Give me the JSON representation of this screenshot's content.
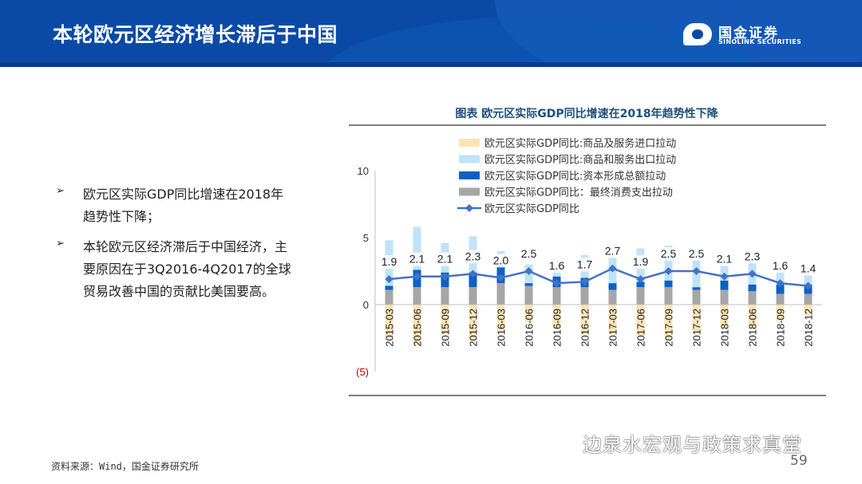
{
  "header": {
    "title": "本轮欧元区经济增长滞后于中国",
    "logo_cn": "国金证券",
    "logo_en": "SINOLINK SECURITIES"
  },
  "bullets": [
    "欧元区实际GDP同比增速在2018年趋势性下降；",
    "本轮欧元区经济滞后于中国经济，主要原因在于3Q2016-4Q2017的全球贸易改善中国的贡献比美国要高。"
  ],
  "footer": {
    "source": "资料来源：Wind，国金证券研究所",
    "page": "59",
    "watermark": "边泉水宏观与政策求真堂"
  },
  "colors": {
    "header_bg": "#0a4aa6",
    "imports": "#fbe3b4",
    "exports": "#bfe3f7",
    "capital": "#0b62c4",
    "consumption": "#a6a6a6",
    "gdp_line": "#4472c4",
    "title_text": "#1f4e79"
  },
  "chart_data": {
    "type": "bar",
    "title": "图表  欧元区实际GDP同比增速在2018年趋势性下降",
    "categories": [
      "2015-03",
      "2015-06",
      "2015-09",
      "2015-12",
      "2016-03",
      "2016-06",
      "2016-09",
      "2016-12",
      "2017-03",
      "2017-06",
      "2017-09",
      "2017-12",
      "2018-03",
      "2018-06",
      "2018-09",
      "2018-12"
    ],
    "ylim": [
      -5,
      10
    ],
    "yticks": [
      10,
      5,
      0,
      -5
    ],
    "ytick_labels": [
      "10",
      "5",
      "0",
      "(5)"
    ],
    "stacked": true,
    "legend_position": "top",
    "series": [
      {
        "name": "欧元区实际GDP同比:商品及服务进口拉动",
        "kind": "bar",
        "color": "#fbe3b4",
        "values": [
          -2.5,
          -3.0,
          -2.2,
          -2.6,
          -2.0,
          -1.3,
          -1.8,
          -2.2,
          -2.2,
          -2.3,
          -2.6,
          -2.1,
          -1.7,
          -1.8,
          -1.2,
          -0.8
        ]
      },
      {
        "name": "欧元区实际GDP同比:商品和服务出口拉动",
        "kind": "bar",
        "color": "#bfe3f7",
        "values": [
          3.4,
          3.2,
          2.2,
          2.7,
          1.1,
          1.4,
          1.3,
          1.7,
          2.2,
          2.5,
          2.6,
          2.8,
          2.0,
          1.9,
          1.3,
          0.7
        ]
      },
      {
        "name": "欧元区实际GDP同比:资本形成总额拉动",
        "kind": "bar",
        "color": "#0b62c4",
        "values": [
          0.3,
          1.3,
          1.1,
          1.1,
          1.3,
          0.2,
          0.8,
          0.7,
          0.5,
          0.4,
          0.5,
          0.2,
          0.7,
          0.5,
          0.7,
          0.7
        ]
      },
      {
        "name": "欧元区实际GDP同比：最终消费支出拉动",
        "kind": "bar",
        "color": "#a6a6a6",
        "values": [
          1.1,
          1.3,
          1.3,
          1.3,
          1.6,
          1.4,
          1.3,
          1.3,
          1.1,
          1.3,
          1.3,
          1.1,
          1.1,
          1.0,
          0.8,
          0.8
        ]
      },
      {
        "name": "欧元区实际GDP同比",
        "kind": "line",
        "color": "#4472c4",
        "values": [
          1.9,
          2.1,
          2.1,
          2.3,
          2.0,
          2.5,
          1.6,
          1.7,
          2.7,
          1.9,
          2.5,
          2.5,
          2.1,
          2.3,
          1.6,
          1.4
        ]
      }
    ],
    "data_labels": [
      "1.9",
      "2.1",
      "2.1",
      "2.3",
      "2.0",
      "2.5",
      "1.6",
      "1.7",
      "2.7",
      "1.9",
      "2.5",
      "2.5",
      "2.1",
      "2.3",
      "1.6",
      "1.4"
    ]
  }
}
